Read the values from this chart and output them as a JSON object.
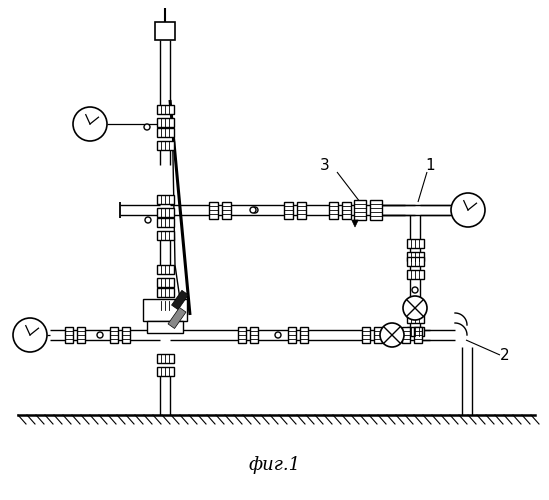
{
  "title": "фиг.1",
  "bg_color": "#ffffff",
  "lc": "#000000",
  "lw": 1.0,
  "plw": 1.3
}
